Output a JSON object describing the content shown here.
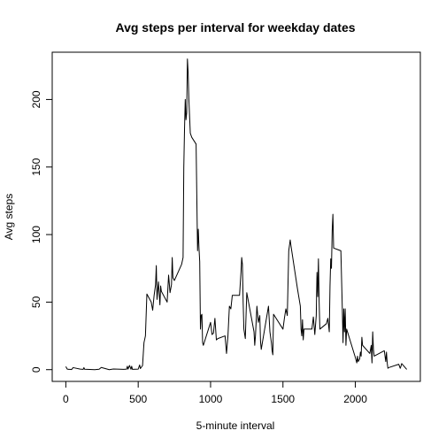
{
  "chart_data": {
    "type": "line",
    "title": "Avg steps per interval for weekday dates",
    "xlabel": "5-minute interval",
    "ylabel": "Avg steps",
    "xlim": [
      -94,
      2449
    ],
    "ylim": [
      -8.7,
      235
    ],
    "x_ticks": [
      0,
      500,
      1000,
      1500,
      2000
    ],
    "y_ticks": [
      0,
      50,
      100,
      150,
      200
    ],
    "grid": false,
    "series": [
      {
        "color": "#000000",
        "points": [
          [
            0,
            2.3
          ],
          [
            10,
            0.4
          ],
          [
            20,
            0.2
          ],
          [
            30,
            0.2
          ],
          [
            40,
            0.1
          ],
          [
            50,
            1.5
          ],
          [
            100,
            0.4
          ],
          [
            120,
            0.2
          ],
          [
            125,
            1.5
          ],
          [
            130,
            0.3
          ],
          [
            200,
            0
          ],
          [
            230,
            0.3
          ],
          [
            245,
            1.6
          ],
          [
            300,
            0
          ],
          [
            330,
            0.5
          ],
          [
            400,
            0.2
          ],
          [
            420,
            0.4
          ],
          [
            425,
            2.5
          ],
          [
            430,
            0.4
          ],
          [
            440,
            3.1
          ],
          [
            450,
            0.3
          ],
          [
            455,
            2.5
          ],
          [
            460,
            0.2
          ],
          [
            500,
            0.4
          ],
          [
            510,
            3.5
          ],
          [
            515,
            0.8
          ],
          [
            530,
            3
          ],
          [
            540,
            20
          ],
          [
            550,
            25
          ],
          [
            560,
            56
          ],
          [
            580,
            52
          ],
          [
            590,
            50
          ],
          [
            600,
            44
          ],
          [
            610,
            55
          ],
          [
            620,
            63
          ],
          [
            625,
            77
          ],
          [
            630,
            52
          ],
          [
            640,
            65
          ],
          [
            650,
            48
          ],
          [
            655,
            62
          ],
          [
            660,
            58
          ],
          [
            700,
            50
          ],
          [
            710,
            70
          ],
          [
            720,
            57
          ],
          [
            730,
            63
          ],
          [
            735,
            83
          ],
          [
            740,
            68
          ],
          [
            750,
            66
          ],
          [
            800,
            78
          ],
          [
            810,
            83
          ],
          [
            815,
            150
          ],
          [
            820,
            178
          ],
          [
            825,
            200
          ],
          [
            830,
            185
          ],
          [
            835,
            190
          ],
          [
            840,
            230
          ],
          [
            845,
            220
          ],
          [
            850,
            200
          ],
          [
            860,
            175
          ],
          [
            870,
            172
          ],
          [
            900,
            167
          ],
          [
            910,
            88
          ],
          [
            915,
            104
          ],
          [
            920,
            90
          ],
          [
            925,
            80
          ],
          [
            930,
            30
          ],
          [
            935,
            40
          ],
          [
            940,
            41
          ],
          [
            945,
            20
          ],
          [
            950,
            18
          ],
          [
            1000,
            35
          ],
          [
            1010,
            26
          ],
          [
            1020,
            27
          ],
          [
            1030,
            38
          ],
          [
            1040,
            22
          ],
          [
            1050,
            23
          ],
          [
            1100,
            25
          ],
          [
            1110,
            12
          ],
          [
            1120,
            25
          ],
          [
            1130,
            47
          ],
          [
            1140,
            45
          ],
          [
            1150,
            55
          ],
          [
            1200,
            55
          ],
          [
            1210,
            72
          ],
          [
            1215,
            83
          ],
          [
            1220,
            78
          ],
          [
            1225,
            50
          ],
          [
            1230,
            30
          ],
          [
            1240,
            23
          ],
          [
            1245,
            40
          ],
          [
            1250,
            57
          ],
          [
            1300,
            28
          ],
          [
            1305,
            18
          ],
          [
            1310,
            25
          ],
          [
            1320,
            47
          ],
          [
            1330,
            35
          ],
          [
            1340,
            40
          ],
          [
            1345,
            21
          ],
          [
            1350,
            15
          ],
          [
            1400,
            47
          ],
          [
            1410,
            28
          ],
          [
            1420,
            20
          ],
          [
            1425,
            14
          ],
          [
            1430,
            11
          ],
          [
            1435,
            41
          ],
          [
            1500,
            30
          ],
          [
            1510,
            38
          ],
          [
            1520,
            45
          ],
          [
            1530,
            40
          ],
          [
            1540,
            88
          ],
          [
            1550,
            96
          ],
          [
            1555,
            92
          ],
          [
            1600,
            60
          ],
          [
            1620,
            47
          ],
          [
            1625,
            30
          ],
          [
            1630,
            25
          ],
          [
            1635,
            37
          ],
          [
            1640,
            22
          ],
          [
            1645,
            30
          ],
          [
            1700,
            30
          ],
          [
            1710,
            39
          ],
          [
            1720,
            26
          ],
          [
            1730,
            40
          ],
          [
            1735,
            72
          ],
          [
            1740,
            54
          ],
          [
            1745,
            82
          ],
          [
            1750,
            50
          ],
          [
            1755,
            30
          ],
          [
            1800,
            34
          ],
          [
            1810,
            38
          ],
          [
            1820,
            28
          ],
          [
            1825,
            62
          ],
          [
            1830,
            82
          ],
          [
            1835,
            75
          ],
          [
            1840,
            103
          ],
          [
            1845,
            115
          ],
          [
            1850,
            90
          ],
          [
            1900,
            88
          ],
          [
            1910,
            45
          ],
          [
            1915,
            20
          ],
          [
            1920,
            45
          ],
          [
            1925,
            28
          ],
          [
            1930,
            45
          ],
          [
            1935,
            18
          ],
          [
            1940,
            30
          ],
          [
            2000,
            9
          ],
          [
            2010,
            5
          ],
          [
            2015,
            10
          ],
          [
            2020,
            6
          ],
          [
            2030,
            8
          ],
          [
            2035,
            13
          ],
          [
            2040,
            10
          ],
          [
            2045,
            24
          ],
          [
            2050,
            18
          ],
          [
            2100,
            12
          ],
          [
            2110,
            18
          ],
          [
            2115,
            5
          ],
          [
            2120,
            28
          ],
          [
            2125,
            15
          ],
          [
            2130,
            10
          ],
          [
            2200,
            14
          ],
          [
            2210,
            6
          ],
          [
            2215,
            13
          ],
          [
            2220,
            5
          ],
          [
            2225,
            1
          ],
          [
            2230,
            1.5
          ],
          [
            2300,
            4
          ],
          [
            2310,
            1
          ],
          [
            2315,
            2.5
          ],
          [
            2320,
            4.5
          ],
          [
            2355,
            0.2
          ]
        ]
      }
    ]
  }
}
